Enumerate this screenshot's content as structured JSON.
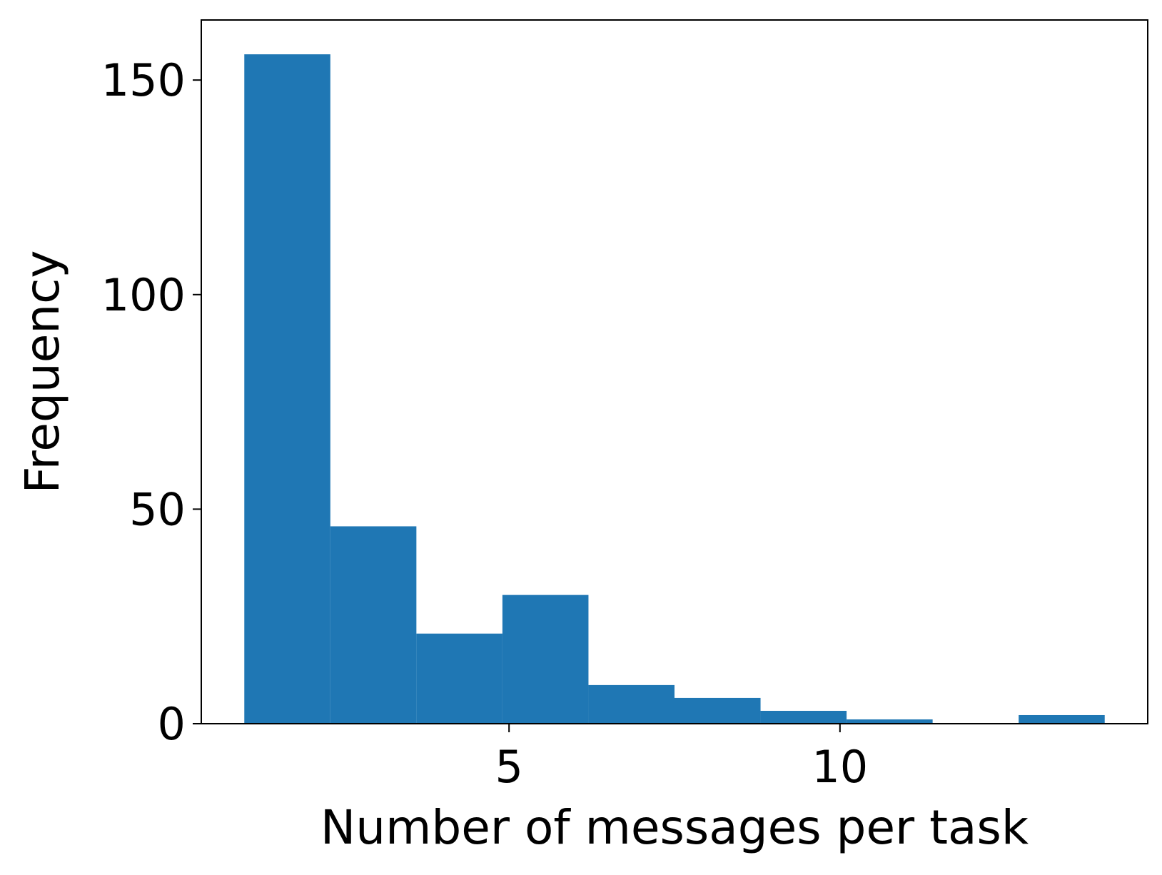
{
  "chart_data": {
    "type": "bar",
    "subtype": "histogram",
    "title": "",
    "xlabel": "Number of messages per task",
    "ylabel": "Frequency",
    "bins": [
      {
        "x0": 1.0,
        "x1": 2.3,
        "count": 156
      },
      {
        "x0": 2.3,
        "x1": 3.6,
        "count": 46
      },
      {
        "x0": 3.6,
        "x1": 4.9,
        "count": 21
      },
      {
        "x0": 4.9,
        "x1": 6.2,
        "count": 30
      },
      {
        "x0": 6.2,
        "x1": 7.5,
        "count": 9
      },
      {
        "x0": 7.5,
        "x1": 8.8,
        "count": 6
      },
      {
        "x0": 8.8,
        "x1": 10.1,
        "count": 3
      },
      {
        "x0": 10.1,
        "x1": 11.4,
        "count": 1
      },
      {
        "x0": 11.4,
        "x1": 12.7,
        "count": 0
      },
      {
        "x0": 12.7,
        "x1": 14.0,
        "count": 2
      }
    ],
    "xlim": [
      0.35,
      14.65
    ],
    "ylim": [
      0,
      164
    ],
    "xticks": [
      5,
      10
    ],
    "xtick_labels": [
      "5",
      "10"
    ],
    "yticks": [
      0,
      50,
      100,
      150
    ],
    "ytick_labels": [
      "0",
      "50",
      "100",
      "150"
    ],
    "bar_color": "#1f77b4",
    "grid": false,
    "legend": "none"
  }
}
